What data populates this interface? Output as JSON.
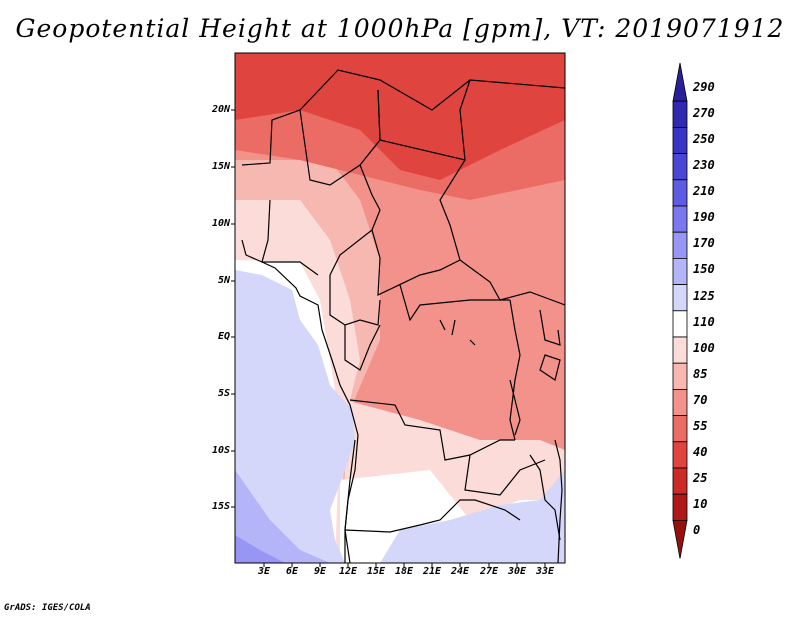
{
  "title": "Geopotential Height at 1000hPa [gpm], VT: 2019071912",
  "footer": "GrADS: IGES/COLA",
  "lat_labels": [
    "20N",
    "15N",
    "10N",
    "5N",
    "EQ",
    "5S",
    "10S",
    "15S"
  ],
  "lon_labels": [
    "3E",
    "6E",
    "9E",
    "12E",
    "15E",
    "18E",
    "21E",
    "24E",
    "27E",
    "30E",
    "33E"
  ],
  "colorbar": {
    "levels": [
      "290",
      "270",
      "250",
      "230",
      "210",
      "190",
      "170",
      "150",
      "125",
      "110",
      "100",
      "85",
      "70",
      "55",
      "40",
      "25",
      "10",
      "0"
    ],
    "colors": [
      "#28209a",
      "#2f28b0",
      "#3a34c6",
      "#4a46d6",
      "#5e5ce4",
      "#7a78ee",
      "#9896f4",
      "#b4b4f8",
      "#d4d6fa",
      "#ffffff",
      "#fcdcd8",
      "#f8b8b2",
      "#f2928a",
      "#ea6c64",
      "#e0443e",
      "#cc2a26",
      "#b01818",
      "#98100e"
    ]
  }
}
